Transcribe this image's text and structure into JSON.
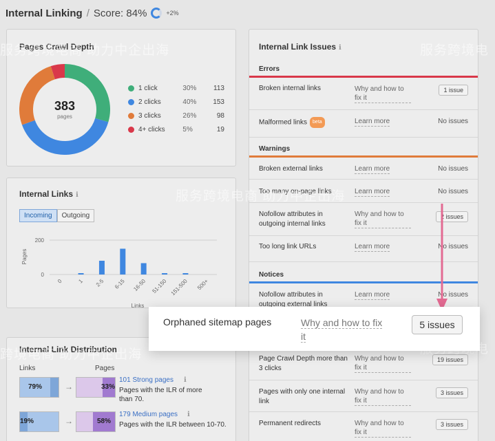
{
  "header": {
    "title": "Internal Linking",
    "separator": "/",
    "score_label": "Score: 84%",
    "score_delta": "+2%"
  },
  "crawl_depth": {
    "title": "Pages Crawl Depth",
    "total": "383",
    "total_label": "pages",
    "items": [
      {
        "label": "1 click",
        "pct": "30%",
        "value": "113",
        "color": "#3fae7a"
      },
      {
        "label": "2 clicks",
        "pct": "40%",
        "value": "153",
        "color": "#3f87e0"
      },
      {
        "label": "3 clicks",
        "pct": "26%",
        "value": "98",
        "color": "#e07b3a"
      },
      {
        "label": "4+ clicks",
        "pct": "5%",
        "value": "19",
        "color": "#d9384a"
      }
    ]
  },
  "internal_links": {
    "title": "Internal Links",
    "tabs": [
      "Incoming",
      "Outgoing"
    ],
    "chart_data": {
      "type": "bar",
      "categories": [
        "0",
        "1",
        "2-5",
        "6-15",
        "16-50",
        "51-150",
        "151-500",
        "500+"
      ],
      "values": [
        0,
        8,
        80,
        150,
        66,
        8,
        8,
        0
      ],
      "ylabel": "Pages",
      "xlabel": "Links",
      "yticks": [
        "0",
        "200"
      ],
      "ylim": [
        0,
        200
      ]
    }
  },
  "distribution": {
    "title": "Internal Link Distribution",
    "col_links": "Links",
    "col_pages": "Pages",
    "rows": [
      {
        "links_pct": "79%",
        "pages_pct": "33%",
        "link_label": "101 Strong pages",
        "desc": "Pages with the ILR of more than 70."
      },
      {
        "links_pct": "19%",
        "pages_pct": "58%",
        "link_label": "179 Medium pages",
        "desc": "Pages with the ILR between 10-70."
      }
    ]
  },
  "issues": {
    "title": "Internal Link Issues",
    "sections": {
      "errors": "Errors",
      "warnings": "Warnings",
      "notices": "Notices"
    },
    "errors": [
      {
        "name": "Broken internal links",
        "link": "Why and how to fix it",
        "status": "1 issue",
        "type": "button"
      },
      {
        "name": "Malformed links",
        "beta": "beta",
        "link": "Learn more",
        "status": "No issues",
        "type": "text"
      }
    ],
    "warnings": [
      {
        "name": "Broken external links",
        "link": "Learn more",
        "status": "No issues",
        "type": "text"
      },
      {
        "name": "Too many on-page links",
        "link": "Learn more",
        "status": "No issues",
        "type": "text"
      },
      {
        "name": "Nofollow attributes in outgoing internal links",
        "link": "Why and how to fix it",
        "status": "2 issues",
        "type": "button"
      },
      {
        "name": "Too long link URLs",
        "link": "Learn more",
        "status": "No issues",
        "type": "text"
      }
    ],
    "notices": [
      {
        "name": "Nofollow attributes in outgoing external links",
        "link": "Learn more",
        "status": "No issues",
        "type": "text"
      },
      {
        "name": "Page Crawl Depth more than 3 clicks",
        "link": "Why and how to fix it",
        "status": "19 issues",
        "type": "button"
      },
      {
        "name": "Pages with only one internal link",
        "link": "Why and how to fix it",
        "status": "3 issues",
        "type": "button"
      },
      {
        "name": "Permanent redirects",
        "link": "Why and how to fix it",
        "status": "3 issues",
        "type": "button"
      }
    ]
  },
  "highlight": {
    "name": "Orphaned sitemap pages",
    "link": "Why and how to fix it",
    "status": "5 issues"
  },
  "watermarks": [
    "服务跨境电商 助力中企出海",
    "服务跨境电",
    "服务跨境电商 助力中企出海",
    "跨境电商 助力中企出海",
    "服务跨境电"
  ]
}
